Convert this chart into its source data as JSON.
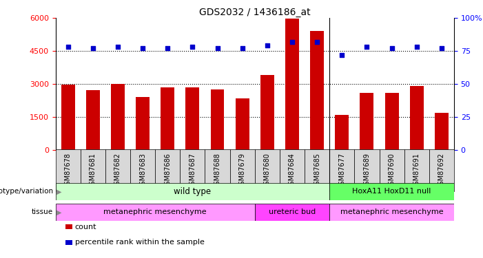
{
  "title": "GDS2032 / 1436186_at",
  "samples": [
    "GSM87678",
    "GSM87681",
    "GSM87682",
    "GSM87683",
    "GSM87686",
    "GSM87687",
    "GSM87688",
    "GSM87679",
    "GSM87680",
    "GSM87684",
    "GSM87685",
    "GSM87677",
    "GSM87689",
    "GSM87690",
    "GSM87691",
    "GSM87692"
  ],
  "counts": [
    2950,
    2700,
    3000,
    2400,
    2850,
    2850,
    2750,
    2350,
    3400,
    5980,
    5400,
    1580,
    2600,
    2600,
    2900,
    1680
  ],
  "percentiles": [
    78,
    77,
    78,
    77,
    77,
    78,
    77,
    77,
    79,
    82,
    82,
    72,
    78,
    77,
    78,
    77
  ],
  "bar_color": "#cc0000",
  "dot_color": "#0000cc",
  "ylim_left": [
    0,
    6000
  ],
  "ylim_right": [
    0,
    100
  ],
  "yticks_left": [
    0,
    1500,
    3000,
    4500,
    6000
  ],
  "yticks_right": [
    0,
    25,
    50,
    75,
    100
  ],
  "ytick_labels_left": [
    "0",
    "1500",
    "3000",
    "4500",
    "6000"
  ],
  "ytick_labels_right": [
    "0",
    "25",
    "50",
    "75",
    "100%"
  ],
  "grid_values": [
    1500,
    3000,
    4500
  ],
  "separator_after_index": 10,
  "genotype_wild_type_count": 11,
  "genotype_hox_count": 5,
  "wild_type_label": "wild type",
  "hox_label": "HoxA11 HoxD11 null",
  "wild_type_color": "#ccffcc",
  "hox_color": "#66ff66",
  "meta1_count": 8,
  "ureteric_count": 3,
  "meta2_count": 5,
  "meta1_label": "metanephric mesenchyme",
  "ureteric_label": "ureteric bud",
  "meta2_label": "metanephric mesenchyme",
  "meta_color": "#ff99ff",
  "ureteric_color": "#ff44ff",
  "genotype_label": "genotype/variation",
  "tissue_label": "tissue",
  "legend_count_label": "count",
  "legend_dot_label": "percentile rank within the sample",
  "bar_width": 0.55
}
